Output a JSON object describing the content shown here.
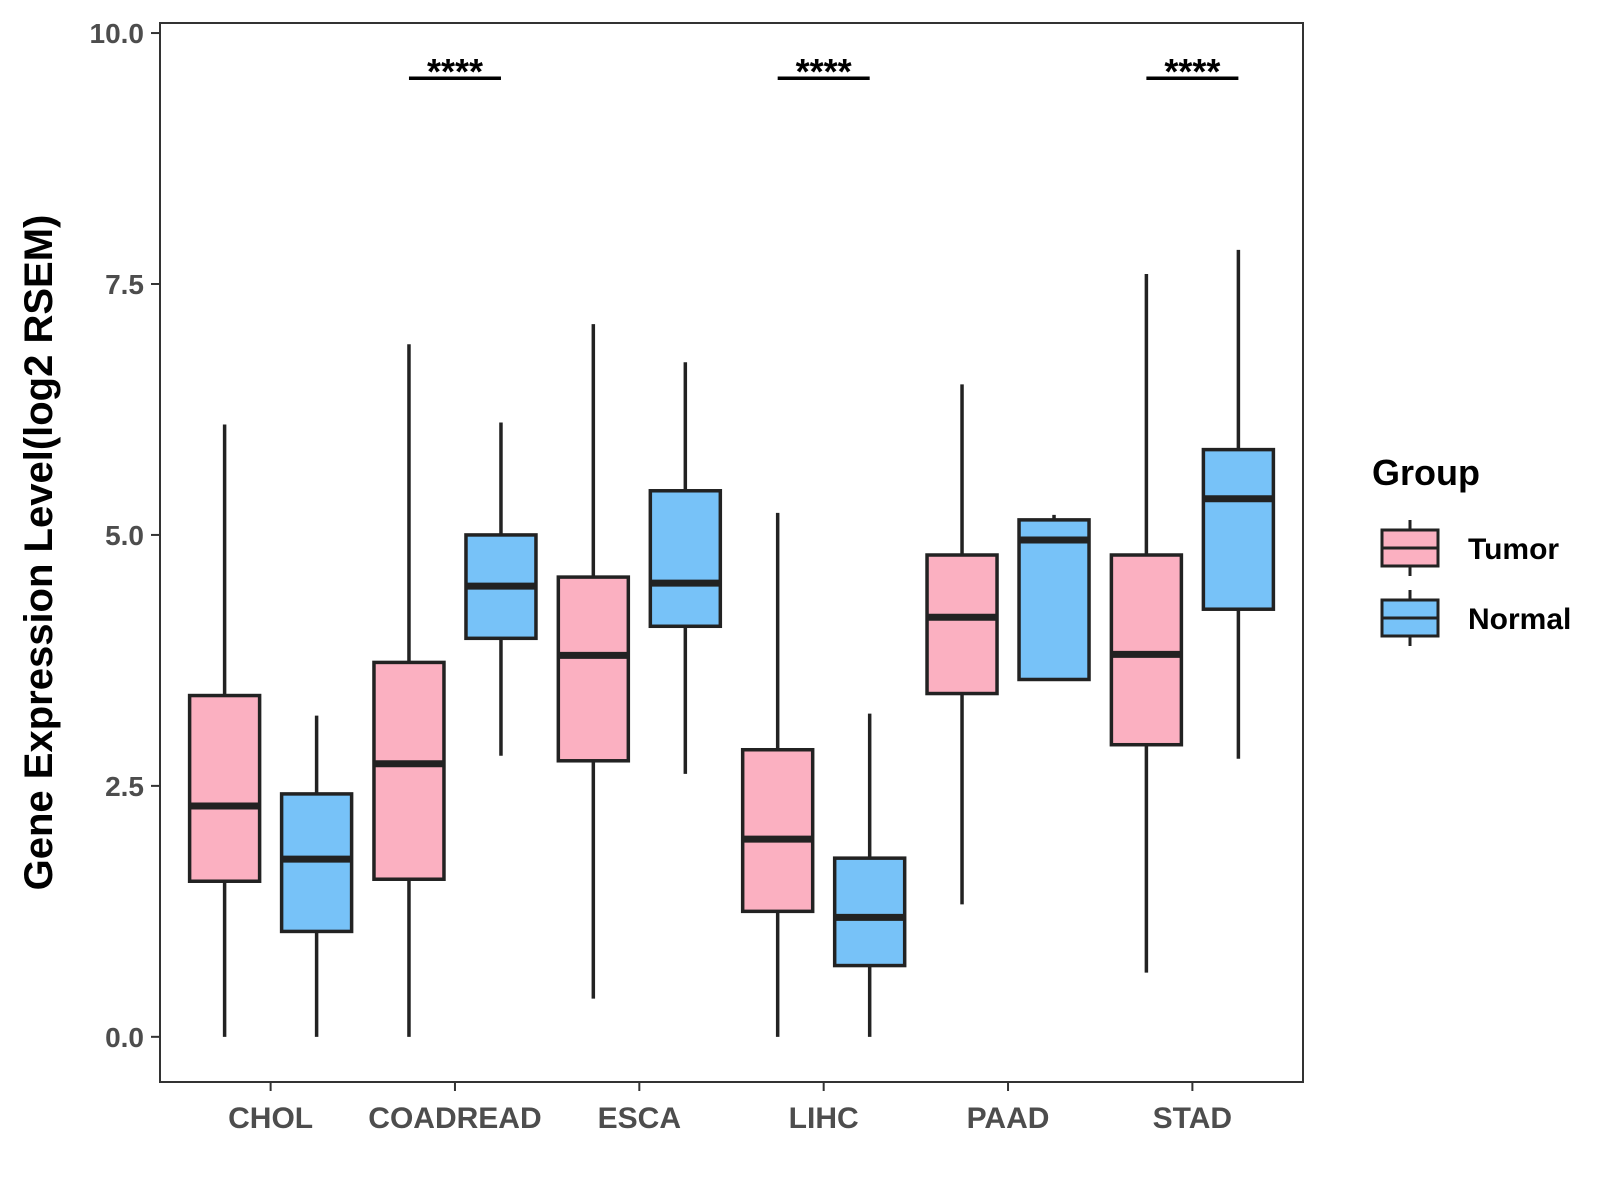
{
  "chart_data": {
    "type": "boxplot",
    "ylabel": "Gene Expression Level(log2 RSEM)",
    "xlabel": "",
    "ylim": [
      -0.45,
      10.1
    ],
    "yticks": [
      "0.0",
      "2.5",
      "5.0",
      "7.5",
      "10.0"
    ],
    "ytick_values": [
      0,
      2.5,
      5.0,
      7.5,
      10.0
    ],
    "categories": [
      "CHOL",
      "COADREAD",
      "ESCA",
      "LIHC",
      "PAAD",
      "STAD"
    ],
    "legend": {
      "title": "Group",
      "position": "right",
      "entries": [
        {
          "name": "Tumor",
          "color": "#FBB0C1"
        },
        {
          "name": "Normal",
          "color": "#77C2F8"
        }
      ]
    },
    "series": [
      {
        "name": "Tumor",
        "color": "#FBB0C1",
        "boxes": [
          {
            "min": 0.0,
            "q1": 1.55,
            "median": 2.3,
            "q3": 3.4,
            "max": 6.1
          },
          {
            "min": 0.0,
            "q1": 1.57,
            "median": 2.72,
            "q3": 3.73,
            "max": 6.9
          },
          {
            "min": 0.38,
            "q1": 2.75,
            "median": 3.8,
            "q3": 4.58,
            "max": 7.1
          },
          {
            "min": 0.0,
            "q1": 1.25,
            "median": 1.97,
            "q3": 2.86,
            "max": 5.22
          },
          {
            "min": 1.32,
            "q1": 3.42,
            "median": 4.18,
            "q3": 4.8,
            "max": 6.5
          },
          {
            "min": 0.64,
            "q1": 2.91,
            "median": 3.81,
            "q3": 4.8,
            "max": 7.6
          }
        ]
      },
      {
        "name": "Normal",
        "color": "#77C2F8",
        "boxes": [
          {
            "min": 0.0,
            "q1": 1.05,
            "median": 1.77,
            "q3": 2.42,
            "max": 3.2
          },
          {
            "min": 2.8,
            "q1": 3.97,
            "median": 4.49,
            "q3": 5.0,
            "max": 6.12
          },
          {
            "min": 2.62,
            "q1": 4.09,
            "median": 4.52,
            "q3": 5.44,
            "max": 6.72
          },
          {
            "min": 0.0,
            "q1": 0.71,
            "median": 1.19,
            "q3": 1.78,
            "max": 3.22
          },
          {
            "min": 3.56,
            "q1": 3.56,
            "median": 4.95,
            "q3": 5.15,
            "max": 5.2
          },
          {
            "min": 2.77,
            "q1": 4.26,
            "median": 5.36,
            "q3": 5.85,
            "max": 7.84
          }
        ]
      }
    ],
    "significance": [
      {
        "category": "COADREAD",
        "label": "****",
        "y": 9.55
      },
      {
        "category": "LIHC",
        "label": "****",
        "y": 9.55
      },
      {
        "category": "STAD",
        "label": "****",
        "y": 9.55
      }
    ]
  }
}
